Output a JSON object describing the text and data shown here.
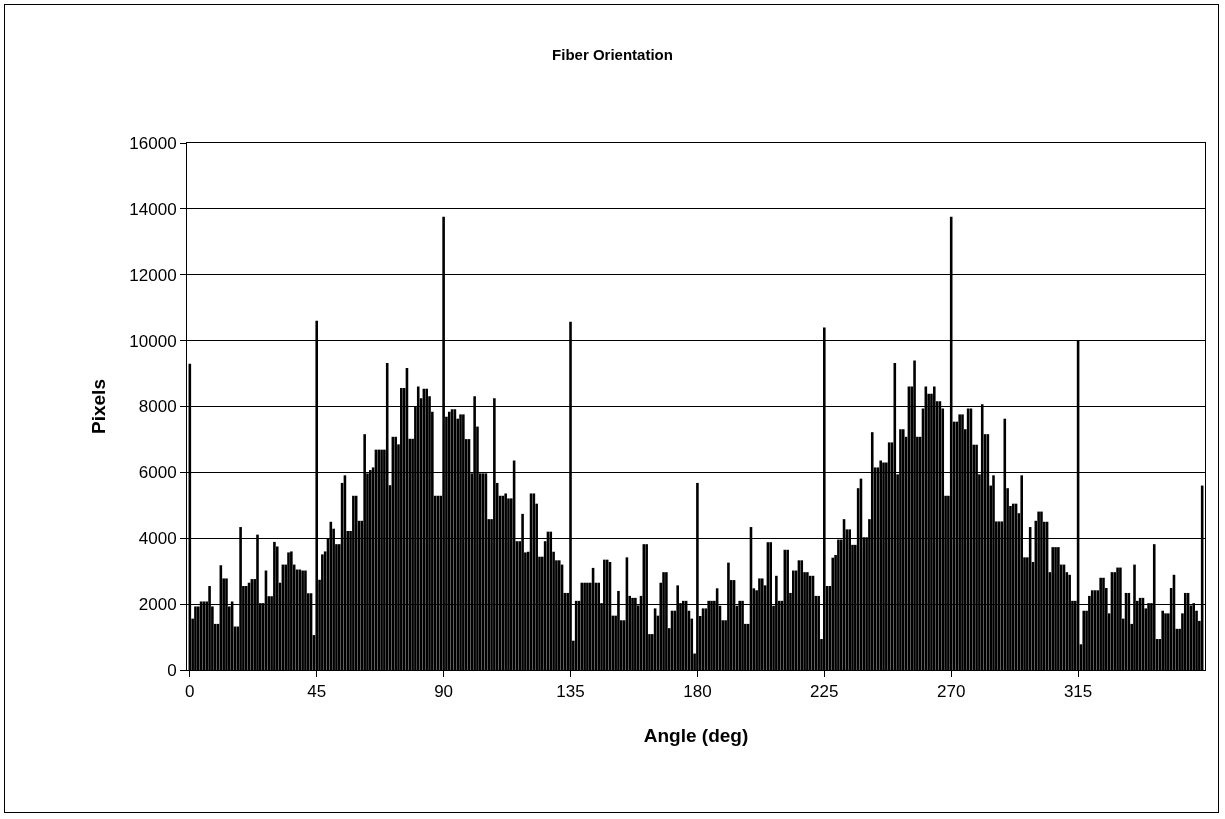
{
  "chart_data": {
    "type": "bar",
    "title": "Fiber Orientation",
    "xlabel": "Angle (deg)",
    "ylabel": "Pixels",
    "x": [
      0,
      1,
      2,
      3,
      4,
      5,
      6,
      7,
      8,
      9,
      10,
      11,
      12,
      13,
      14,
      15,
      16,
      17,
      18,
      19,
      20,
      21,
      22,
      23,
      24,
      25,
      26,
      27,
      28,
      29,
      30,
      31,
      32,
      33,
      34,
      35,
      36,
      37,
      38,
      39,
      40,
      41,
      42,
      43,
      44,
      45,
      46,
      47,
      48,
      49,
      50,
      51,
      52,
      53,
      54,
      55,
      56,
      57,
      58,
      59,
      60,
      61,
      62,
      63,
      64,
      65,
      66,
      67,
      68,
      69,
      70,
      71,
      72,
      73,
      74,
      75,
      76,
      77,
      78,
      79,
      80,
      81,
      82,
      83,
      84,
      85,
      86,
      87,
      88,
      89,
      90,
      91,
      92,
      93,
      94,
      95,
      96,
      97,
      98,
      99,
      100,
      101,
      102,
      103,
      104,
      105,
      106,
      107,
      108,
      109,
      110,
      111,
      112,
      113,
      114,
      115,
      116,
      117,
      118,
      119,
      120,
      121,
      122,
      123,
      124,
      125,
      126,
      127,
      128,
      129,
      130,
      131,
      132,
      133,
      134,
      135,
      136,
      137,
      138,
      139,
      140,
      141,
      142,
      143,
      144,
      145,
      146,
      147,
      148,
      149,
      150,
      151,
      152,
      153,
      154,
      155,
      156,
      157,
      158,
      159,
      160,
      161,
      162,
      163,
      164,
      165,
      166,
      167,
      168,
      169,
      170,
      171,
      172,
      173,
      174,
      175,
      176,
      177,
      178,
      179,
      180,
      181,
      182,
      183,
      184,
      185,
      186,
      187,
      188,
      189,
      190,
      191,
      192,
      193,
      194,
      195,
      196,
      197,
      198,
      199,
      200,
      201,
      202,
      203,
      204,
      205,
      206,
      207,
      208,
      209,
      210,
      211,
      212,
      213,
      214,
      215,
      216,
      217,
      218,
      219,
      220,
      221,
      222,
      223,
      224,
      225,
      226,
      227,
      228,
      229,
      230,
      231,
      232,
      233,
      234,
      235,
      236,
      237,
      238,
      239,
      240,
      241,
      242,
      243,
      244,
      245,
      246,
      247,
      248,
      249,
      250,
      251,
      252,
      253,
      254,
      255,
      256,
      257,
      258,
      259,
      260,
      261,
      262,
      263,
      264,
      265,
      266,
      267,
      268,
      269,
      270,
      271,
      272,
      273,
      274,
      275,
      276,
      277,
      278,
      279,
      280,
      281,
      282,
      283,
      284,
      285,
      286,
      287,
      288,
      289,
      290,
      291,
      292,
      293,
      294,
      295,
      296,
      297,
      298,
      299,
      300,
      301,
      302,
      303,
      304,
      305,
      306,
      307,
      308,
      309,
      310,
      311,
      312,
      313,
      314,
      315,
      316,
      317,
      318,
      319,
      320,
      321,
      322,
      323,
      324,
      325,
      326,
      327,
      328,
      329,
      330,
      331,
      332,
      333,
      334,
      335,
      336,
      337,
      338,
      339,
      340,
      341,
      342,
      343,
      344,
      345,
      346,
      347,
      348,
      349,
      350,
      351,
      352,
      353,
      354,
      355,
      356,
      357,
      358,
      359
    ],
    "values": [
      9300,
      1560,
      1930,
      1930,
      2080,
      2080,
      2080,
      2550,
      1930,
      1400,
      1400,
      3180,
      2780,
      2780,
      1930,
      2080,
      1320,
      1320,
      4340,
      2550,
      2550,
      2650,
      2760,
      2760,
      4110,
      2030,
      2030,
      3020,
      2240,
      2240,
      3890,
      3750,
      2650,
      3200,
      3200,
      3570,
      3600,
      3200,
      3050,
      3050,
      3020,
      3020,
      2330,
      2330,
      1060,
      10600,
      2740,
      3510,
      3600,
      3980,
      4500,
      4290,
      3820,
      3820,
      5680,
      5910,
      4220,
      4220,
      5290,
      5290,
      4530,
      4530,
      7160,
      5970,
      6070,
      6150,
      6690,
      6690,
      6690,
      6690,
      9320,
      5610,
      7080,
      7080,
      6850,
      8560,
      8560,
      9170,
      7020,
      7020,
      8010,
      8610,
      8250,
      8540,
      8540,
      8310,
      7840,
      5290,
      5290,
      5290,
      13760,
      7690,
      7840,
      7920,
      7920,
      7630,
      7760,
      7760,
      7010,
      7010,
      5970,
      8310,
      7390,
      5970,
      5970,
      5970,
      4580,
      4580,
      8250,
      5680,
      5290,
      5290,
      5360,
      5210,
      5210,
      6360,
      3910,
      3910,
      4740,
      3570,
      3590,
      5360,
      5360,
      5050,
      3440,
      3440,
      3910,
      4200,
      4200,
      3590,
      3330,
      3330,
      3200,
      2340,
      2340,
      10570,
      890,
      2100,
      2100,
      2650,
      2650,
      2650,
      2650,
      3100,
      2650,
      2650,
      2030,
      3350,
      3350,
      3280,
      1650,
      1650,
      2400,
      1510,
      1510,
      3420,
      2250,
      2190,
      2190,
      1960,
      2250,
      3820,
      3820,
      1090,
      1090,
      1870,
      1650,
      2650,
      2970,
      2970,
      1270,
      1800,
      1800,
      2570,
      2030,
      2100,
      2100,
      1800,
      1560,
      500,
      5680,
      1640,
      1870,
      1870,
      2100,
      2100,
      2100,
      2480,
      1950,
      1510,
      1510,
      3260,
      2730,
      2730,
      1950,
      2100,
      2100,
      1400,
      1400,
      4340,
      2480,
      2420,
      2780,
      2780,
      2570,
      3880,
      3880,
      1950,
      2860,
      2100,
      2100,
      3650,
      3650,
      2340,
      3020,
      3020,
      3330,
      3330,
      2970,
      2970,
      2860,
      2860,
      2250,
      2250,
      940,
      10400,
      2550,
      2550,
      3410,
      3490,
      3960,
      3960,
      4580,
      4270,
      4270,
      3800,
      3800,
      5520,
      5810,
      4030,
      4030,
      4580,
      7220,
      6150,
      6150,
      6360,
      6300,
      6300,
      6910,
      6910,
      9320,
      5940,
      7310,
      7310,
      7080,
      8610,
      8610,
      9400,
      7080,
      7080,
      7940,
      8610,
      8390,
      8390,
      8610,
      8160,
      8160,
      7940,
      5290,
      5290,
      13760,
      7540,
      7540,
      7760,
      7760,
      7310,
      7940,
      7940,
      6840,
      6840,
      5940,
      8070,
      7160,
      7160,
      5600,
      5910,
      4510,
      4510,
      4510,
      7630,
      5520,
      4980,
      5050,
      5050,
      4760,
      5910,
      3420,
      3420,
      4340,
      3280,
      4530,
      4810,
      4810,
      4500,
      4500,
      2970,
      3730,
      3730,
      3730,
      3200,
      3200,
      2970,
      2890,
      2100,
      2100,
      10000,
      780,
      1800,
      1800,
      2250,
      2420,
      2420,
      2420,
      2800,
      2800,
      2490,
      1720,
      2970,
      2970,
      3110,
      3110,
      1560,
      2340,
      2340,
      1400,
      3200,
      2100,
      2190,
      2190,
      1870,
      2030,
      2030,
      3820,
      940,
      940,
      1800,
      1720,
      1720,
      2490,
      2890,
      1250,
      1250,
      1720,
      2340,
      2340,
      1960,
      2030,
      1800,
      1490,
      5600
    ],
    "color": "#000000",
    "xlim": [
      -1,
      360
    ],
    "xticks": [
      0,
      45,
      90,
      135,
      180,
      225,
      270,
      315
    ],
    "ylim": [
      0,
      16000
    ],
    "yticks": [
      0,
      2000,
      4000,
      6000,
      8000,
      10000,
      12000,
      14000,
      16000
    ],
    "grid": "y"
  }
}
